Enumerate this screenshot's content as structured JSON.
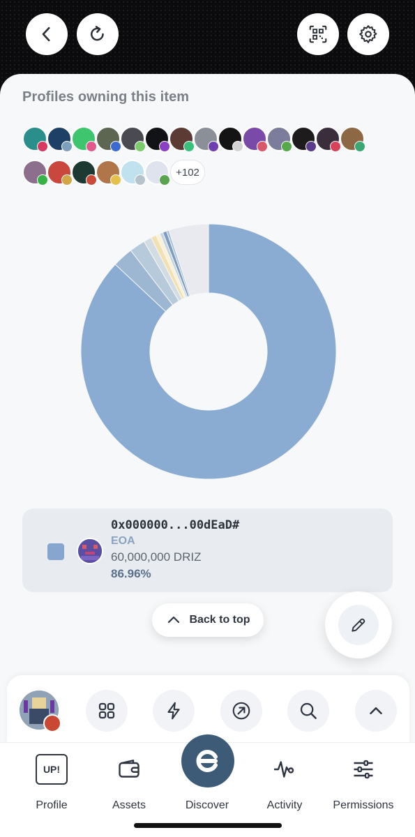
{
  "section_title": "Profiles owning this item",
  "owners": {
    "row1_count": 14,
    "row2_count": 6,
    "more_label": "+102"
  },
  "chart_data": {
    "type": "pie",
    "donut": true,
    "slices": [
      {
        "label": "0x000000...00dEaD#",
        "value": 86.96,
        "color": "#8aabd2"
      },
      {
        "label": "",
        "value": 2.6,
        "color": "#9db6d2"
      },
      {
        "label": "",
        "value": 2.0,
        "color": "#b7cadc"
      },
      {
        "label": "",
        "value": 1.0,
        "color": "#d4dce3"
      },
      {
        "label": "",
        "value": 0.7,
        "color": "#f2e2b2"
      },
      {
        "label": "",
        "value": 0.5,
        "color": "#fbf2d3"
      },
      {
        "label": "",
        "value": 0.4,
        "color": "#c2d4e2"
      },
      {
        "label": "",
        "value": 0.5,
        "color": "#7d9cc0"
      },
      {
        "label": "",
        "value": 0.3,
        "color": "#a6c0d8"
      },
      {
        "label": "",
        "value": 5.04,
        "color": "#e8eaef"
      }
    ]
  },
  "legend": {
    "address": "0x000000...00dEaD#",
    "type": "EOA",
    "amount": "60,000,000 DRIZ",
    "percent": "86.96%",
    "color": "#86a5cf"
  },
  "back_to_top": "Back to top",
  "toolbar": {
    "icons": [
      "grid-icon",
      "bolt-icon",
      "arrow-up-right-icon",
      "search-icon",
      "chevron-up-icon"
    ]
  },
  "tabs": [
    {
      "label": "Profile",
      "icon": "up-badge-icon"
    },
    {
      "label": "Assets",
      "icon": "wallet-icon"
    },
    {
      "label": "Discover",
      "icon": "discover-logo-icon"
    },
    {
      "label": "Activity",
      "icon": "activity-icon"
    },
    {
      "label": "Permissions",
      "icon": "sliders-icon"
    }
  ],
  "up_badge": "UP!"
}
